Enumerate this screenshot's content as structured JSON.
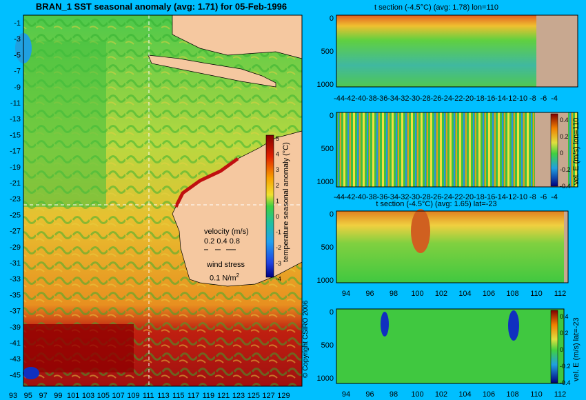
{
  "main_map": {
    "title": "BRAN_1 SST seasonal anomaly (avg: 1.71) for 05-Feb-1996",
    "lat_ticks": [
      "-1",
      "-3",
      "-5",
      "-7",
      "-9",
      "-11",
      "-13",
      "-15",
      "-17",
      "-19",
      "-21",
      "-23",
      "-25",
      "-27",
      "-29",
      "-31",
      "-33",
      "-35",
      "-37",
      "-39",
      "-41",
      "-43",
      "-45"
    ],
    "lon_ticks": [
      "93",
      "95",
      "97",
      "99",
      "101",
      "103",
      "105",
      "107",
      "109",
      "111",
      "113",
      "115",
      "117",
      "119",
      "121",
      "123",
      "125",
      "127",
      "129"
    ],
    "colorbar_ticks": [
      "5",
      "4",
      "3",
      "2",
      "1",
      "0",
      "-1",
      "-2",
      "-3",
      "-4"
    ],
    "colorbar_label": "temperature seasonal anomaly (°C)",
    "legend": {
      "velocity_label": "velocity (m/s)",
      "velocity_values": "0.2 0.4 0.8",
      "wind_label": "wind stress",
      "wind_value": "0.1 N/m",
      "wind_sup": "2"
    },
    "copyright": "© Copyright CSIRO 2006"
  },
  "panels": {
    "p1": {
      "title": "t section (-4.5°C) (avg: 1.78) lon=110"
    },
    "p2": {
      "colorbar_label": "vel. E (m/s) lon=110",
      "colorbar_ticks": [
        "0.4",
        "0.2",
        "0",
        "-0.2",
        "-0.4"
      ]
    },
    "p3": {
      "title": "t section (-4.5°C) (avg: 1.65) lat=-23"
    },
    "p4": {
      "colorbar_label": "vel. E (m/s) lat=-23",
      "colorbar_ticks": [
        "0.4",
        "0.2",
        "0",
        "-0.2",
        "-0.4"
      ]
    },
    "depth_ticks": [
      "0",
      "500",
      "1000"
    ],
    "lat_axis_ticks": [
      "-44",
      "-42",
      "-40",
      "-38",
      "-36",
      "-34",
      "-32",
      "-30",
      "-28",
      "-26",
      "-24",
      "-22",
      "-20",
      "-18",
      "-16",
      "-14",
      "-12",
      "-10",
      "-8",
      "-6",
      "-4"
    ],
    "lon_axis_ticks": [
      "94",
      "96",
      "98",
      "100",
      "102",
      "104",
      "106",
      "108",
      "110",
      "112"
    ]
  },
  "chart_data": {
    "type": "heatmap",
    "colors": {
      "background": "#00bfff",
      "land": "#f5c8a0",
      "ocean_mid": "#3cc83c"
    }
  }
}
